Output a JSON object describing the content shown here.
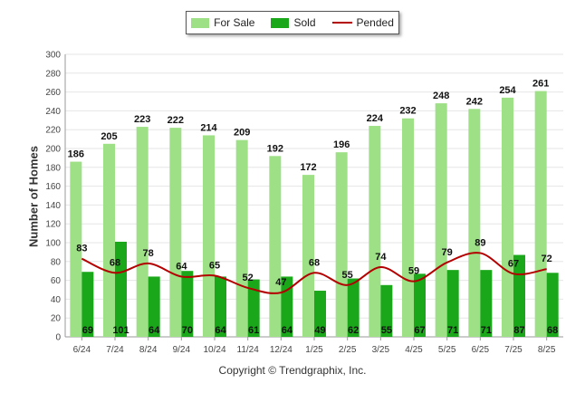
{
  "chart_data": {
    "type": "bar",
    "categories": [
      "6/24",
      "7/24",
      "8/24",
      "9/24",
      "10/24",
      "11/24",
      "12/24",
      "1/25",
      "2/25",
      "3/25",
      "4/25",
      "5/25",
      "6/25",
      "7/25",
      "8/25"
    ],
    "series": [
      {
        "name": "For Sale",
        "type": "bar",
        "color": "#9de085",
        "values": [
          186,
          205,
          223,
          222,
          214,
          209,
          192,
          172,
          196,
          224,
          232,
          248,
          242,
          254,
          261
        ]
      },
      {
        "name": "Sold",
        "type": "bar",
        "color": "#1aa81a",
        "values": [
          69,
          101,
          64,
          70,
          64,
          61,
          64,
          49,
          62,
          55,
          67,
          71,
          71,
          87,
          68
        ]
      },
      {
        "name": "Pended",
        "type": "line",
        "color": "#b30000",
        "values": [
          83,
          68,
          78,
          64,
          65,
          52,
          47,
          68,
          55,
          74,
          59,
          79,
          89,
          67,
          72
        ]
      }
    ],
    "ylabel": "Number of Homes",
    "ylim": [
      0,
      300
    ],
    "yticks": [
      0,
      20,
      40,
      60,
      80,
      100,
      120,
      140,
      160,
      180,
      200,
      220,
      240,
      260,
      280,
      300
    ],
    "grid": true,
    "legend": "top-center"
  },
  "copyright": "Copyright © Trendgraphix, Inc."
}
